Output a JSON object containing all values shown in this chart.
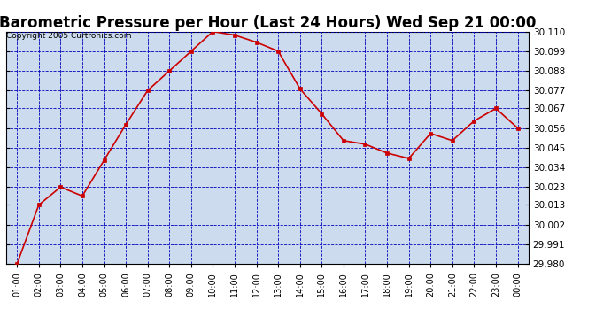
{
  "title": "Barometric Pressure per Hour (Last 24 Hours) Wed Sep 21 00:00",
  "copyright": "Copyright 2005 Curtronics.com",
  "x_labels": [
    "01:00",
    "02:00",
    "03:00",
    "04:00",
    "05:00",
    "06:00",
    "07:00",
    "08:00",
    "09:00",
    "10:00",
    "11:00",
    "12:00",
    "13:00",
    "14:00",
    "15:00",
    "16:00",
    "17:00",
    "18:00",
    "19:00",
    "20:00",
    "21:00",
    "22:00",
    "23:00",
    "00:00"
  ],
  "y_values": [
    29.98,
    30.013,
    30.023,
    30.018,
    30.038,
    30.058,
    30.077,
    30.088,
    30.099,
    30.11,
    30.108,
    30.104,
    30.099,
    30.078,
    30.064,
    30.049,
    30.047,
    30.042,
    30.039,
    30.053,
    30.049,
    30.06,
    30.067,
    30.056
  ],
  "ylim_min": 29.98,
  "ylim_max": 30.11,
  "yticks": [
    29.98,
    29.991,
    30.002,
    30.013,
    30.023,
    30.034,
    30.045,
    30.056,
    30.067,
    30.077,
    30.088,
    30.099,
    30.11
  ],
  "line_color": "#CC0000",
  "marker_color": "#CC0000",
  "bg_color": "#FFFFFF",
  "plot_bg_color": "#CCDCEE",
  "grid_color": "#0000BB",
  "title_fontsize": 12,
  "copyright_fontsize": 6.5,
  "tick_fontsize": 7.5,
  "x_tick_fontsize": 7
}
